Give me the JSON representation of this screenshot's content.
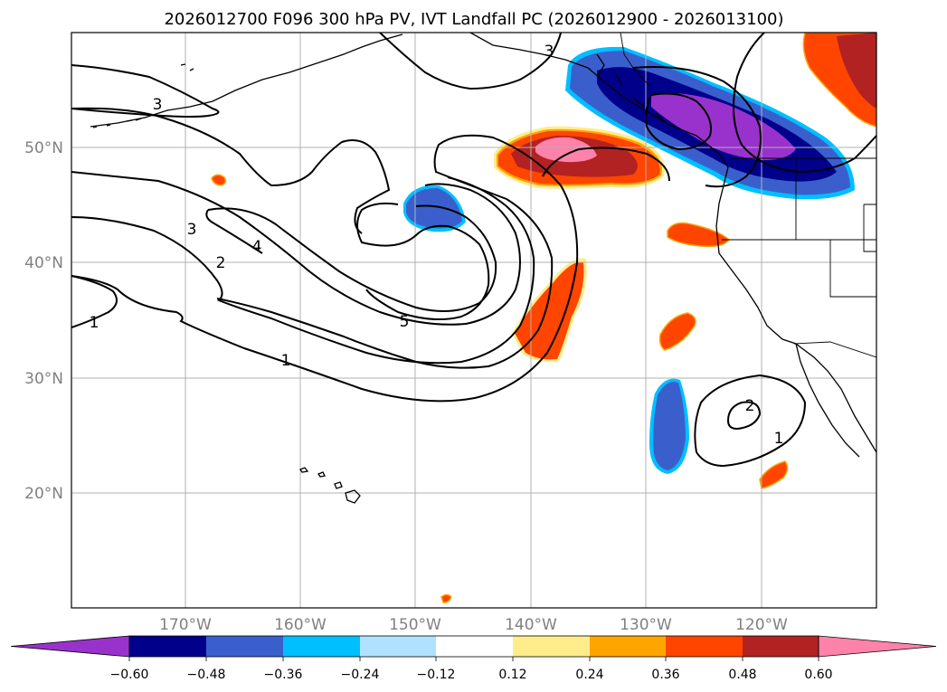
{
  "title": "2026012700 F096 300 hPa PV, IVT Landfall PC (2026012900 - 2026013100)",
  "map": {
    "lon_labels": [
      "170°W",
      "160°W",
      "150°W",
      "140°W",
      "130°W",
      "120°W"
    ],
    "lat_labels": [
      "50°N",
      "40°N",
      "30°N",
      "20°N"
    ],
    "pv_contour_labels": [
      "1",
      "2",
      "3",
      "4",
      "5",
      "3",
      "3",
      "2",
      "1",
      "1"
    ]
  },
  "colorbar": {
    "ticks": [
      "−0.60",
      "−0.48",
      "−0.36",
      "−0.24",
      "−0.12",
      "0.12",
      "0.24",
      "0.36",
      "0.48",
      "0.60"
    ],
    "colors": {
      "lt_m060": "#9932cc",
      "m060_m048": "#00008b",
      "m048_m036": "#3a5fcd",
      "m036_m024": "#00bfff",
      "m024_m012": "#b0e2ff",
      "m012_012": "#ffffff",
      "p012_p024": "#ffec8b",
      "p024_p036": "#ffa500",
      "p036_p048": "#ff4500",
      "p048_p060": "#b22222",
      "gt_p060": "#ff82ab"
    }
  }
}
